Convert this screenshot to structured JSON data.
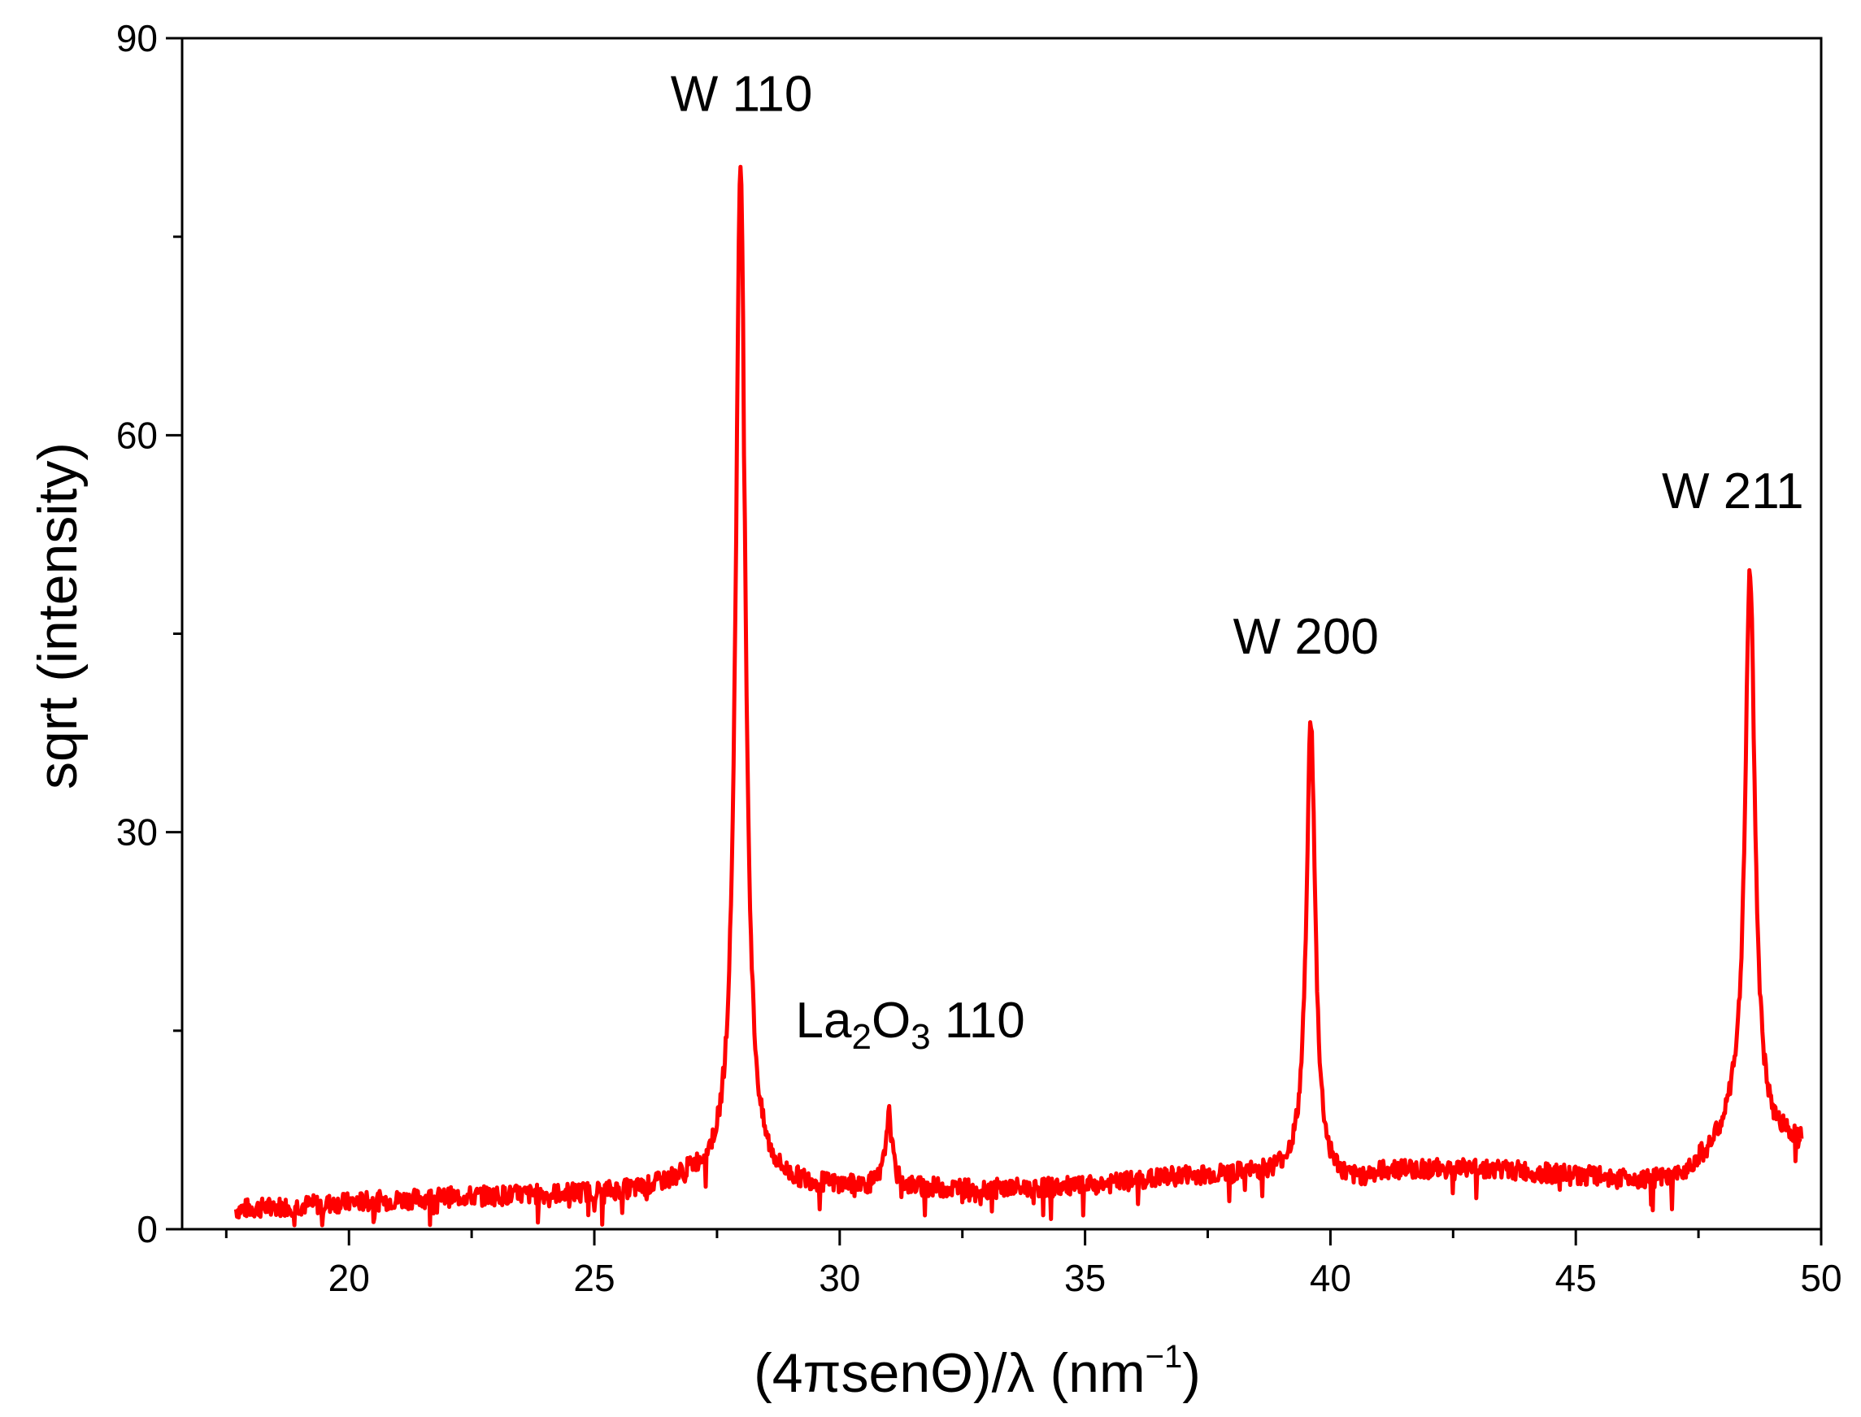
{
  "chart_data": {
    "type": "line",
    "title": "",
    "xlabel_parts": {
      "main": "(4πsenΘ)/λ",
      "unit_open": "(nm",
      "unit_sup": "−1",
      "unit_close": ")"
    },
    "ylabel": "sqrt (intensity)",
    "xlim": [
      16.6,
      50
    ],
    "ylim": [
      0,
      90
    ],
    "x_ticks": [
      20,
      25,
      30,
      35,
      40,
      45,
      50
    ],
    "y_ticks": [
      0,
      30,
      60,
      90
    ],
    "x_minor_step": 2.5,
    "y_minor_step": 15,
    "grid": false,
    "legend": "none",
    "series": [
      {
        "color": "#ff0000",
        "baseline": [
          [
            17.7,
            1.5
          ],
          [
            20,
            2.0
          ],
          [
            22,
            2.4
          ],
          [
            24,
            2.6
          ],
          [
            26,
            2.9
          ],
          [
            27.0,
            3.8
          ],
          [
            29,
            3.2
          ],
          [
            31,
            3.1
          ],
          [
            33,
            3.0
          ],
          [
            35,
            3.2
          ],
          [
            37,
            4.0
          ],
          [
            39.2,
            4.2
          ],
          [
            40.4,
            3.4
          ],
          [
            41.2,
            4.4
          ],
          [
            43,
            4.6
          ],
          [
            45,
            4.0
          ],
          [
            47,
            3.6
          ],
          [
            47.8,
            5.8
          ],
          [
            48.2,
            7.4
          ],
          [
            49,
            6.6
          ],
          [
            49.6,
            6.6
          ]
        ],
        "peaks": [
          {
            "x": 27.98,
            "height": 77,
            "width": 0.12
          },
          {
            "x": 31.0,
            "height": 5.5,
            "width": 0.08
          },
          {
            "x": 39.6,
            "height": 34.5,
            "width": 0.11
          },
          {
            "x": 48.55,
            "height": 43,
            "width": 0.12
          }
        ],
        "x_range": [
          17.7,
          49.6
        ],
        "noise_amplitude": 0.75
      }
    ],
    "annotations": [
      {
        "text": "W 110",
        "x": 28.0,
        "y": 84.5
      },
      {
        "text": "W 200",
        "x": 39.5,
        "y": 43.5
      },
      {
        "text": "W 211",
        "x": 48.2,
        "y": 54.5
      }
    ],
    "annotation_la2o3": {
      "prefix": "La",
      "sub1": "2",
      "mid": "O",
      "sub2": "3",
      "suffix": " 110",
      "x": 29.1,
      "y": 14.5
    }
  }
}
